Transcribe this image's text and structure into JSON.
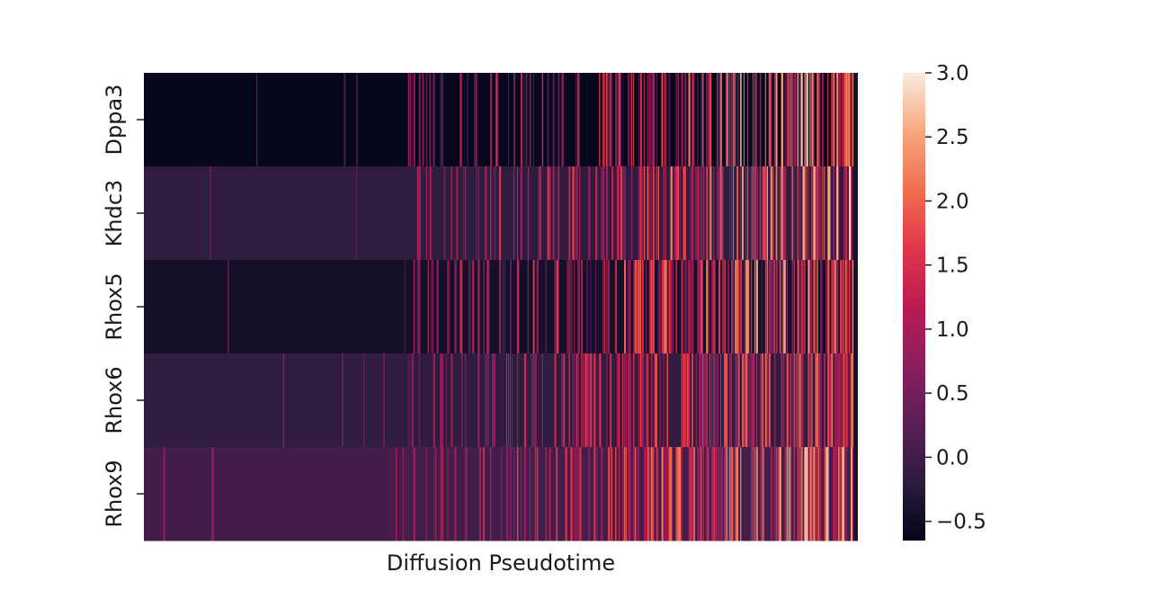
{
  "chart_data": {
    "type": "heatmap",
    "title": "",
    "xlabel": "Diffusion Pseudotime",
    "ylabel": "",
    "rows": [
      "Dppa3",
      "Khdc3",
      "Rhox5",
      "Rhox6",
      "Rhox9"
    ],
    "x_tick_labels": [],
    "colorbar": {
      "colormap": "rocket",
      "vmin": -0.65,
      "vmax": 3.0,
      "ticks": [
        -0.5,
        0.0,
        0.5,
        1.0,
        1.5,
        2.0,
        2.5,
        3.0
      ],
      "tick_labels": [
        "−0.5",
        "0.0",
        "0.5",
        "1.0",
        "1.5",
        "2.0",
        "2.5",
        "3.0"
      ]
    },
    "grid": false,
    "legend": "colorbar-right",
    "profile_note": "Approximate per-gene expression profile along pseudotime (columns ordered by diffusion pseudotime): baseline value, pseudotime fraction where high-expression stripes begin, and peak stripe value.",
    "gene_profiles": [
      {
        "gene": "Dppa3",
        "baseline": -0.6,
        "onset": 0.35,
        "peak": 3.0
      },
      {
        "gene": "Khdc3",
        "baseline": -0.15,
        "onset": 0.38,
        "peak": 3.0
      },
      {
        "gene": "Rhox5",
        "baseline": -0.45,
        "onset": 0.35,
        "peak": 3.0
      },
      {
        "gene": "Rhox6",
        "baseline": -0.15,
        "onset": 0.37,
        "peak": 2.5
      },
      {
        "gene": "Rhox9",
        "baseline": 0.05,
        "onset": 0.39,
        "peak": 3.0
      }
    ]
  }
}
